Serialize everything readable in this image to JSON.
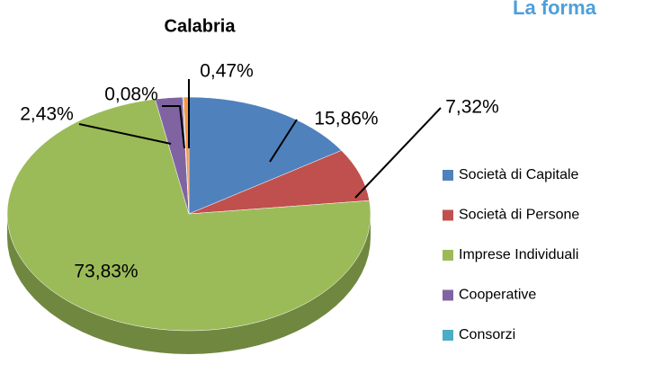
{
  "heading": "La forma",
  "chart_data": {
    "type": "pie",
    "title": "Calabria",
    "categories": [
      "Società di Capitale",
      "Società di Persone",
      "Imprese Individuali",
      "Cooperative",
      "Consorzi",
      null
    ],
    "values": [
      15.86,
      7.32,
      73.83,
      2.43,
      0.08,
      0.47
    ],
    "value_labels": [
      "15,86%",
      "7,32%",
      "73,83%",
      "2,43%",
      "0,08%",
      "0,47%"
    ],
    "colors": [
      "#4f81bd",
      "#c0504d",
      "#9bbb59",
      "#8064a2",
      "#4bacc6",
      "#f79646"
    ],
    "legend": "right"
  }
}
